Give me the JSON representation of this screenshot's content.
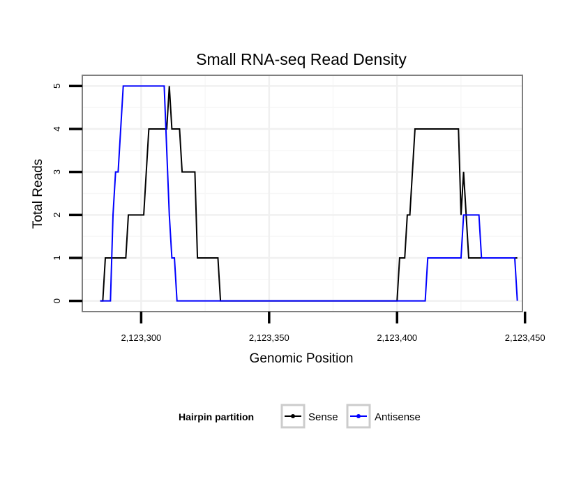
{
  "chart_data": {
    "type": "line",
    "title": "Small RNA-seq Read Density",
    "xlabel": "Genomic Position",
    "ylabel": "Total Reads",
    "xlim": [
      2123277,
      2123449
    ],
    "ylim": [
      -0.25,
      5.25
    ],
    "x_ticks": [
      2123300,
      2123350,
      2123400,
      2123450
    ],
    "x_tick_labels": [
      "2,123,300",
      "2,123,350",
      "2,123,400",
      "2,123,450"
    ],
    "y_ticks": [
      0,
      1,
      2,
      3,
      4,
      5
    ],
    "y_tick_labels": [
      "0",
      "1",
      "2",
      "3",
      "4",
      "5"
    ],
    "grid": true,
    "legend": {
      "title": "Hairpin partition",
      "placement": "bottom"
    },
    "series": [
      {
        "name": "Sense",
        "color": "#000000",
        "points": [
          [
            2123284,
            0
          ],
          [
            2123285,
            0
          ],
          [
            2123286,
            1
          ],
          [
            2123294,
            1
          ],
          [
            2123295,
            2
          ],
          [
            2123301,
            2
          ],
          [
            2123303,
            4
          ],
          [
            2123310,
            4
          ],
          [
            2123311,
            5
          ],
          [
            2123312,
            4
          ],
          [
            2123315,
            4
          ],
          [
            2123316,
            3
          ],
          [
            2123321,
            3
          ],
          [
            2123322,
            1
          ],
          [
            2123330,
            1
          ],
          [
            2123331,
            0
          ],
          [
            2123400,
            0
          ],
          [
            2123401,
            1
          ],
          [
            2123403,
            1
          ],
          [
            2123404,
            2
          ],
          [
            2123405,
            2
          ],
          [
            2123407,
            4
          ],
          [
            2123424,
            4
          ],
          [
            2123425,
            2
          ],
          [
            2123426,
            3
          ],
          [
            2123428,
            1
          ],
          [
            2123447,
            1
          ]
        ]
      },
      {
        "name": "Antisense",
        "color": "#0000ff",
        "points": [
          [
            2123284,
            0
          ],
          [
            2123288,
            0
          ],
          [
            2123289,
            2
          ],
          [
            2123290,
            3
          ],
          [
            2123291,
            3
          ],
          [
            2123293,
            5
          ],
          [
            2123309,
            5
          ],
          [
            2123311,
            2
          ],
          [
            2123312,
            1
          ],
          [
            2123313,
            1
          ],
          [
            2123314,
            0
          ],
          [
            2123411,
            0
          ],
          [
            2123412,
            1
          ],
          [
            2123425,
            1
          ],
          [
            2123426,
            2
          ],
          [
            2123432,
            2
          ],
          [
            2123433,
            1
          ],
          [
            2123446,
            1
          ],
          [
            2123447,
            0
          ]
        ]
      }
    ]
  }
}
